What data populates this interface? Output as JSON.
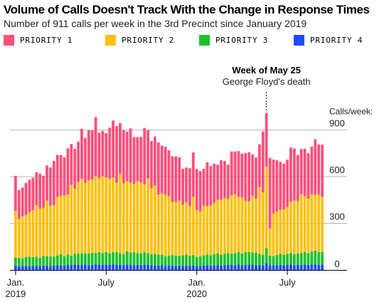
{
  "title": "Volume of Calls Doesn't Track With the Change in Response Times",
  "subtitle": "Number of 911 calls per week in the 3rd Precinct since January 2019",
  "legend": [
    {
      "label": "PRIORITY 1",
      "color": "#ff4f7b"
    },
    {
      "label": "PRIORITY 2",
      "color": "#fec00f"
    },
    {
      "label": "PRIORITY 3",
      "color": "#1dc12c"
    },
    {
      "label": "PRIORITY 4",
      "color": "#1f49ff"
    }
  ],
  "annotation": {
    "title": "Week of May 25",
    "subtitle": "George Floyd's death"
  },
  "chart_data": {
    "type": "bar",
    "stacked": true,
    "title": "Volume of Calls Doesn't Track With the Change in Response Times",
    "subtitle": "Number of 911 calls per week in the 3rd Precinct since January 2019",
    "ylabel": "Calls/week:",
    "ylim": [
      0,
      1000
    ],
    "yticks": [
      0,
      300,
      600,
      900
    ],
    "grid": true,
    "legend_position": "top",
    "x_start": "2019-01-07",
    "x_ticks": [
      {
        "label": "Jan.",
        "sublabel": "2019",
        "week_index": 0
      },
      {
        "label": "July",
        "sublabel": "",
        "week_index": 26
      },
      {
        "label": "Jan.",
        "sublabel": "2020",
        "week_index": 52
      },
      {
        "label": "July",
        "sublabel": "",
        "week_index": 78
      }
    ],
    "annotation": {
      "week_index": 72,
      "label": "Week of May 25",
      "sublabel": "George Floyd's death"
    },
    "series": [
      {
        "name": "PRIORITY 4",
        "color": "#1f49ff",
        "values": [
          28,
          24,
          25,
          27,
          23,
          25,
          26,
          24,
          28,
          27,
          26,
          28,
          30,
          29,
          27,
          32,
          30,
          34,
          33,
          32,
          35,
          31,
          33,
          36,
          34,
          32,
          35,
          33,
          36,
          34,
          33,
          30,
          35,
          32,
          31,
          33,
          30,
          34,
          32,
          31,
          29,
          28,
          30,
          26,
          29,
          27,
          25,
          28,
          26,
          29,
          27,
          28,
          24,
          26,
          28,
          30,
          27,
          29,
          31,
          28,
          30,
          32,
          33,
          30,
          34,
          31,
          33,
          32,
          35,
          30,
          31,
          28,
          45,
          30,
          29,
          31,
          33,
          30,
          32,
          34,
          31,
          33,
          30,
          35,
          32,
          34,
          36,
          33,
          35
        ]
      },
      {
        "name": "PRIORITY 3",
        "color": "#1dc12c",
        "values": [
          52,
          55,
          50,
          56,
          62,
          58,
          60,
          55,
          63,
          60,
          62,
          58,
          65,
          72,
          60,
          68,
          63,
          70,
          72,
          75,
          70,
          75,
          78,
          72,
          82,
          76,
          80,
          74,
          78,
          82,
          76,
          72,
          85,
          80,
          83,
          76,
          78,
          80,
          76,
          70,
          74,
          72,
          68,
          62,
          64,
          70,
          66,
          63,
          68,
          70,
          64,
          68,
          60,
          62,
          66,
          70,
          68,
          72,
          75,
          70,
          74,
          76,
          72,
          78,
          80,
          76,
          82,
          84,
          78,
          80,
          72,
          70,
          95,
          62,
          60,
          66,
          70,
          68,
          72,
          75,
          70,
          74,
          78,
          80,
          76,
          84,
          88,
          82,
          80
        ]
      },
      {
        "name": "PRIORITY 2",
        "color": "#fec00f",
        "values": [
          300,
          250,
          270,
          270,
          285,
          300,
          330,
          315,
          310,
          360,
          325,
          330,
          375,
          375,
          392,
          385,
          455,
          420,
          460,
          480,
          455,
          470,
          470,
          495,
          475,
          495,
          480,
          480,
          480,
          445,
          510,
          455,
          450,
          450,
          440,
          460,
          455,
          435,
          480,
          425,
          440,
          385,
          395,
          395,
          380,
          340,
          345,
          355,
          325,
          335,
          320,
          375,
          300,
          290,
          320,
          310,
          320,
          330,
          345,
          355,
          360,
          350,
          375,
          380,
          355,
          360,
          330,
          325,
          365,
          350,
          430,
          400,
          525,
          175,
          275,
          280,
          285,
          290,
          300,
          330,
          345,
          335,
          380,
          360,
          350,
          370,
          360,
          370,
          355
        ]
      },
      {
        "name": "PRIORITY 1",
        "color": "#ff4f7b",
        "values": [
          225,
          186,
          185,
          207,
          210,
          210,
          213,
          226,
          205,
          225,
          246,
          285,
          270,
          263,
          245,
          297,
          262,
          255,
          260,
          321,
          289,
          322,
          317,
          380,
          292,
          291,
          285,
          328,
          367,
          364,
          326,
          343,
          320,
          348,
          300,
          285,
          292,
          364,
          311,
          303,
          315,
          335,
          307,
          309,
          297,
          293,
          294,
          279,
          231,
          225,
          243,
          285,
          265,
          258,
          236,
          283,
          253,
          252,
          226,
          252,
          237,
          219,
          282,
          274,
          296,
          281,
          307,
          316,
          265,
          263,
          275,
          393,
          345,
          453,
          346,
          328,
          307,
          296,
          305,
          348,
          335,
          298,
          290,
          304,
          293,
          306,
          357,
          322,
          336
        ]
      }
    ]
  }
}
